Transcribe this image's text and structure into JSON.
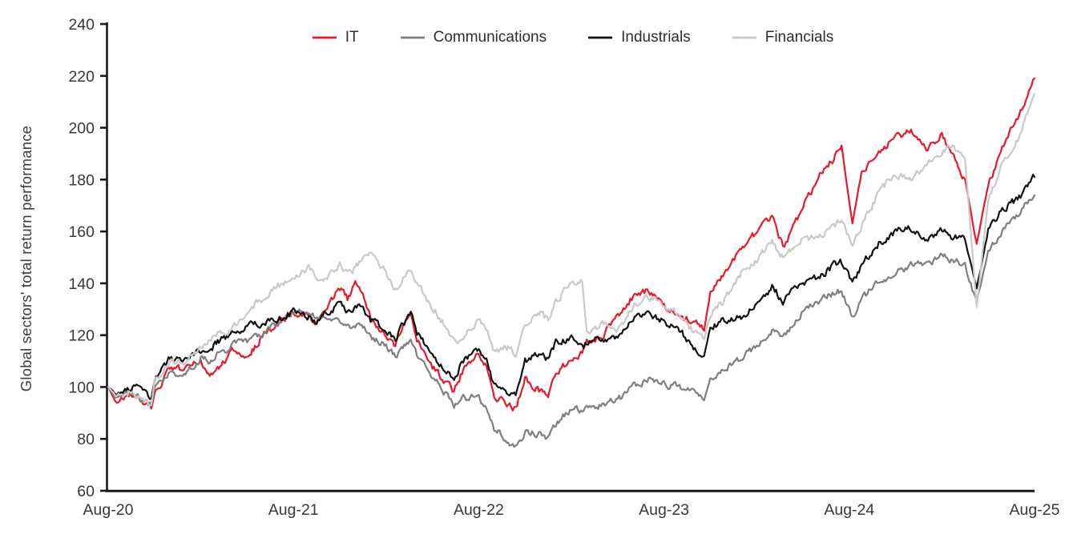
{
  "chart_data": {
    "type": "line",
    "title": "",
    "xlabel": "",
    "ylabel": "Global sectors' total return performance",
    "ylim": [
      60,
      240
    ],
    "yticks": [
      60,
      80,
      100,
      120,
      140,
      160,
      180,
      200,
      220,
      240
    ],
    "x_tick_labels": [
      "Aug-20",
      "Aug-21",
      "Aug-22",
      "Aug-23",
      "Aug-24",
      "Aug-25"
    ],
    "x_tick_positions_months": [
      0,
      12,
      24,
      36,
      48,
      60
    ],
    "grid": false,
    "legend_position": "top",
    "x_unit": "months since Aug-2020, index rebased to 100",
    "x_months": [
      0,
      0.5,
      1,
      1.5,
      2,
      2.5,
      2.8,
      3,
      4,
      5,
      6,
      6.5,
      7,
      7.5,
      8,
      9,
      9.5,
      10,
      11,
      12,
      13,
      13.5,
      14,
      15,
      15.5,
      16,
      16.5,
      17,
      18,
      18.6,
      19,
      19.6,
      20,
      21,
      22,
      22.4,
      23,
      24,
      24.5,
      25,
      26,
      26.4,
      27,
      28,
      28.5,
      29,
      30,
      30.7,
      31,
      32,
      33,
      34,
      35,
      36,
      37,
      38,
      38.6,
      39,
      40,
      41,
      42,
      43,
      43.7,
      44,
      45,
      46,
      47,
      47.5,
      48.2,
      48.8,
      50,
      51,
      52,
      53,
      54,
      54.6,
      55.5,
      56.25,
      57,
      58,
      59,
      60
    ],
    "series": [
      {
        "name": "IT",
        "color": "#e8192b",
        "values": [
          100,
          94,
          96,
          97,
          95,
          93,
          91.5,
          97,
          107,
          107,
          110,
          105,
          106,
          110,
          114,
          112,
          115,
          120,
          125,
          129,
          128,
          124,
          130,
          138,
          134,
          140,
          136,
          126,
          120,
          116,
          122,
          128,
          118,
          108,
          101,
          98,
          107,
          114,
          108,
          97,
          93,
          91.5,
          103,
          98,
          96.5,
          106,
          110,
          113,
          118,
          119,
          128,
          135,
          137,
          131,
          127,
          126,
          122,
          136,
          145,
          152,
          160,
          165,
          154,
          157,
          169,
          181,
          188,
          193,
          163,
          183,
          191,
          196,
          199,
          192,
          198,
          190,
          180,
          155,
          178,
          193,
          205,
          219
        ]
      },
      {
        "name": "Communications",
        "color": "#7f7f7f",
        "values": [
          100,
          96,
          97,
          98,
          96,
          94,
          93,
          99,
          105,
          105,
          111,
          110,
          112,
          114,
          116,
          118,
          119,
          121,
          124,
          128,
          130,
          127,
          128,
          125,
          123,
          123,
          124,
          119,
          116,
          112,
          115,
          118,
          112,
          104,
          96,
          93,
          96,
          96,
          92,
          84,
          79,
          76.5,
          82,
          82,
          80,
          86,
          92,
          90,
          93,
          93,
          95,
          100,
          103,
          101,
          100,
          98,
          95,
          103,
          107,
          111,
          116,
          122,
          119,
          121,
          129,
          133,
          136,
          137,
          127,
          134,
          141,
          144,
          147,
          147,
          151,
          149,
          147,
          133,
          152,
          161,
          167,
          174
        ]
      },
      {
        "name": "Industrials",
        "color": "#111111",
        "values": [
          100,
          97.5,
          99,
          100,
          99,
          97,
          96,
          103,
          111,
          110,
          114,
          114,
          117,
          119,
          121,
          123,
          124,
          124,
          126,
          129,
          127,
          125,
          128,
          132,
          129,
          130,
          131,
          126,
          122,
          119,
          123,
          128,
          121,
          112,
          106,
          103,
          110,
          115,
          110,
          100,
          98,
          97,
          110,
          113,
          111,
          117,
          119,
          115,
          117,
          119,
          118,
          126,
          129,
          125,
          122,
          115,
          112,
          123,
          126,
          127,
          131,
          139,
          133,
          135,
          140,
          142,
          147,
          148,
          140,
          147,
          156,
          160,
          161,
          157,
          160,
          158,
          157,
          138,
          160,
          169,
          173,
          181
        ]
      },
      {
        "name": "Financials",
        "color": "#c9c9c9",
        "values": [
          100,
          97,
          97,
          98,
          96,
          94,
          93,
          102,
          110,
          110,
          115,
          117,
          120,
          122,
          122,
          130,
          132,
          134,
          139,
          142,
          146,
          143,
          141,
          147,
          144,
          146,
          149,
          152,
          144,
          138,
          141,
          146,
          140,
          131,
          122,
          118,
          119,
          127,
          122,
          114,
          115,
          112,
          125,
          128,
          126,
          133,
          140,
          141,
          121,
          124,
          122,
          131,
          135,
          131,
          128,
          121,
          118,
          128,
          134,
          144,
          149,
          156,
          150,
          152,
          157,
          158,
          162,
          164,
          154,
          162,
          176,
          182,
          180,
          186,
          191,
          193,
          188,
          131,
          172,
          187,
          196,
          213
        ]
      }
    ]
  }
}
